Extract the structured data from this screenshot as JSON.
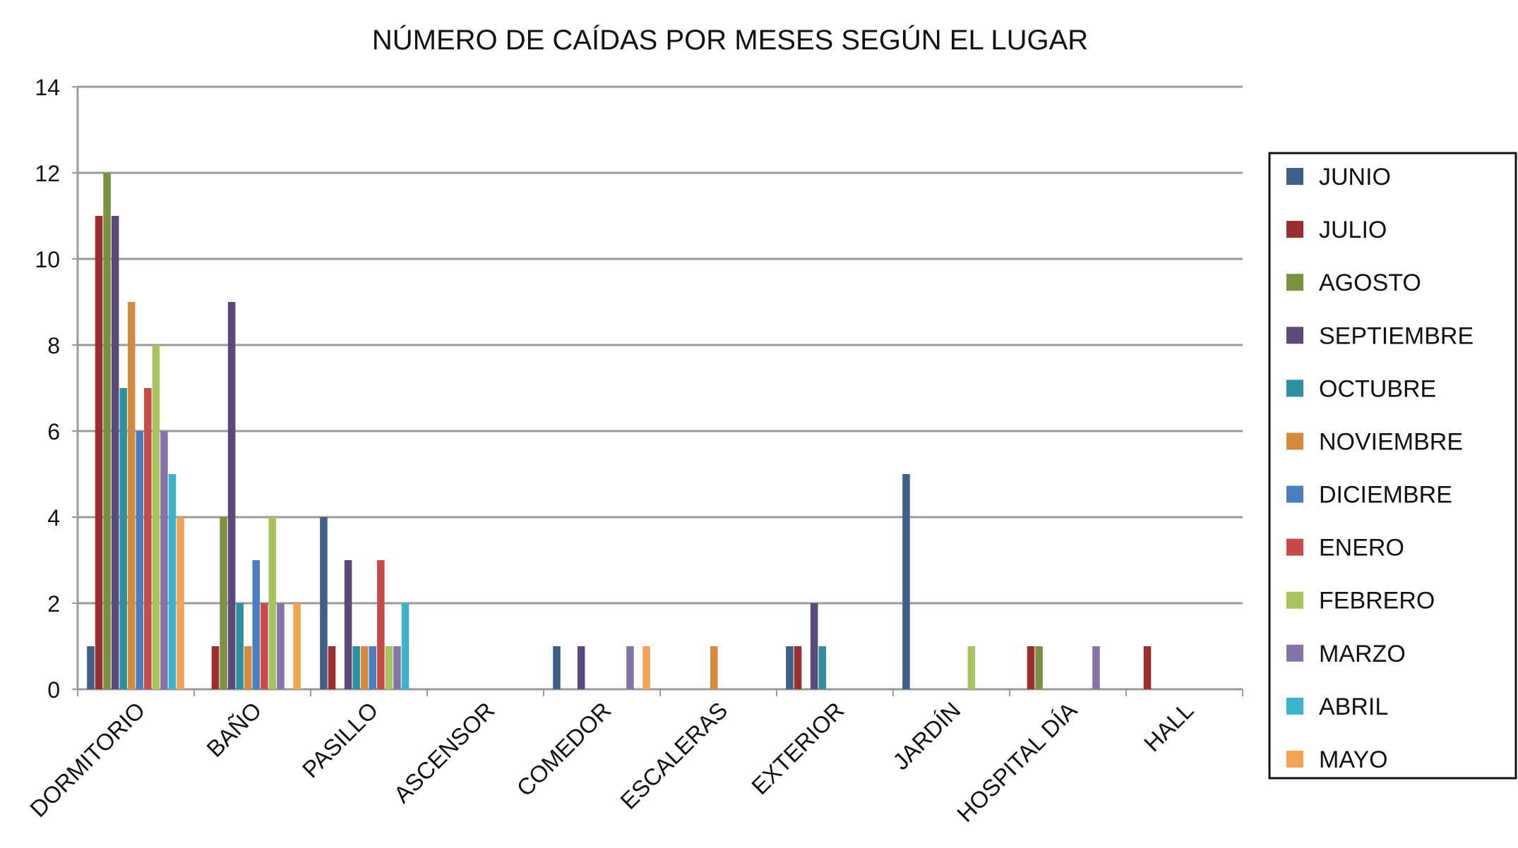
{
  "chart_data": {
    "type": "bar",
    "title": "NÚMERO DE CAÍDAS POR MESES SEGÚN EL LUGAR",
    "xlabel": "",
    "ylabel": "",
    "ylim": [
      0,
      14
    ],
    "yticks": [
      0,
      2,
      4,
      6,
      8,
      10,
      12,
      14
    ],
    "grid": true,
    "legend_position": "right",
    "categories": [
      "DORMITORIO",
      "BAÑO",
      "PASILLO",
      "ASCENSOR",
      "COMEDOR",
      "ESCALERAS",
      "EXTERIOR",
      "JARDÍN",
      "HOSPITAL DÍA",
      "HALL"
    ],
    "series": [
      {
        "name": "JUNIO",
        "color": "#3E5F8A",
        "values": [
          1,
          0,
          4,
          0,
          1,
          0,
          1,
          5,
          0,
          0
        ]
      },
      {
        "name": "JULIO",
        "color": "#9B2E2E",
        "values": [
          11,
          1,
          1,
          0,
          0,
          0,
          1,
          0,
          1,
          1
        ]
      },
      {
        "name": "AGOSTO",
        "color": "#7A9140",
        "values": [
          12,
          4,
          0,
          0,
          0,
          0,
          0,
          0,
          1,
          0
        ]
      },
      {
        "name": "SEPTIEMBRE",
        "color": "#5A4A7C",
        "values": [
          11,
          9,
          3,
          0,
          1,
          0,
          2,
          0,
          0,
          0
        ]
      },
      {
        "name": "OCTUBRE",
        "color": "#2F8FA0",
        "values": [
          7,
          2,
          1,
          0,
          0,
          0,
          1,
          0,
          0,
          0
        ]
      },
      {
        "name": "NOVIEMBRE",
        "color": "#D48A3C",
        "values": [
          9,
          1,
          1,
          0,
          0,
          1,
          0,
          0,
          0,
          0
        ]
      },
      {
        "name": "DICIEMBRE",
        "color": "#4A7EC0",
        "values": [
          6,
          3,
          1,
          0,
          0,
          0,
          0,
          0,
          0,
          0
        ]
      },
      {
        "name": "ENERO",
        "color": "#C84A48",
        "values": [
          7,
          2,
          3,
          0,
          0,
          0,
          0,
          0,
          0,
          0
        ]
      },
      {
        "name": "FEBRERO",
        "color": "#A8C25E",
        "values": [
          8,
          4,
          1,
          0,
          0,
          0,
          0,
          1,
          0,
          0
        ]
      },
      {
        "name": "MARZO",
        "color": "#8673A8",
        "values": [
          6,
          2,
          1,
          0,
          1,
          0,
          0,
          0,
          1,
          0
        ]
      },
      {
        "name": "ABRIL",
        "color": "#3DB3CB",
        "values": [
          5,
          0,
          2,
          0,
          0,
          0,
          0,
          0,
          0,
          0
        ]
      },
      {
        "name": "MAYO",
        "color": "#F2A253",
        "values": [
          4,
          2,
          0,
          0,
          1,
          0,
          0,
          0,
          0,
          0
        ]
      }
    ]
  }
}
